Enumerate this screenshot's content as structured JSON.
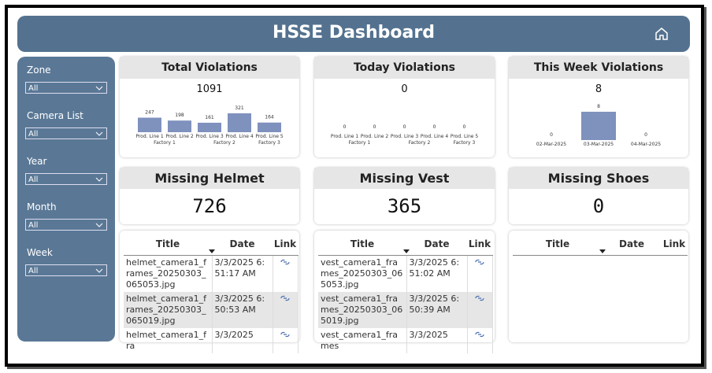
{
  "header": {
    "title": "HSSE Dashboard"
  },
  "filters": [
    {
      "label": "Zone",
      "value": "All"
    },
    {
      "label": "Camera List",
      "value": "All"
    },
    {
      "label": "Year",
      "value": "All"
    },
    {
      "label": "Month",
      "value": "All"
    },
    {
      "label": "Week",
      "value": "All"
    }
  ],
  "cards": [
    {
      "title": "Total Violations",
      "value": 1091,
      "chart": {
        "type": "bar",
        "groups": [
          {
            "name": "Factory 1",
            "categories": [
              "Prod. Line 1",
              "Prod. Line 2"
            ],
            "values": [
              247,
              198
            ]
          },
          {
            "name": "Factory 2",
            "categories": [
              "Prod. Line 3",
              "Prod. Line 4"
            ],
            "values": [
              161,
              321
            ]
          },
          {
            "name": "Factory 3",
            "categories": [
              "Prod. Line 5"
            ],
            "values": [
              164
            ]
          }
        ]
      }
    },
    {
      "title": "Today Violations",
      "value": 0,
      "chart": {
        "type": "bar",
        "groups": [
          {
            "name": "Factory 1",
            "categories": [
              "Prod. Line 1",
              "Prod. Line 2"
            ],
            "values": [
              0,
              0
            ]
          },
          {
            "name": "Factory 2",
            "categories": [
              "Prod. Line 3",
              "Prod. Line 4"
            ],
            "values": [
              0,
              0
            ]
          },
          {
            "name": "Factory 3",
            "categories": [
              "Prod. Line 5"
            ],
            "values": [
              0
            ]
          }
        ]
      }
    },
    {
      "title": "This Week Violations",
      "value": 8,
      "chart": {
        "type": "bar",
        "groups": [
          {
            "categories": [
              "02-Mar-2025",
              "03-Mar-2025",
              "04-Mar-2025"
            ],
            "values": [
              0,
              8,
              0
            ]
          }
        ]
      }
    }
  ],
  "kpis": [
    {
      "title": "Missing Helmet",
      "value": 726
    },
    {
      "title": "Missing Vest",
      "value": 365
    },
    {
      "title": "Missing Shoes",
      "value": 0
    }
  ],
  "tables": [
    {
      "columns": [
        "Title",
        "Date",
        "Link"
      ],
      "rows": [
        [
          "helmet_camera1_frames_20250303_065053.jpg",
          "3/3/2025 6:51:17 AM"
        ],
        [
          "helmet_camera1_frames_20250303_065019.jpg",
          "3/3/2025 6:50:53 AM"
        ],
        [
          "helmet_camera1_fra",
          "3/3/2025"
        ]
      ]
    },
    {
      "columns": [
        "Title",
        "Date",
        "Link"
      ],
      "rows": [
        [
          "vest_camera1_frames_20250303_065053.jpg",
          "3/3/2025 6:51:02 AM"
        ],
        [
          "vest_camera1_frames_20250303_065019.jpg",
          "3/3/2025 6:50:39 AM"
        ],
        [
          "vest_camera1_frames",
          "3/3/2025"
        ]
      ]
    },
    {
      "columns": [
        "Title",
        "Date",
        "Link"
      ],
      "rows": []
    }
  ]
}
